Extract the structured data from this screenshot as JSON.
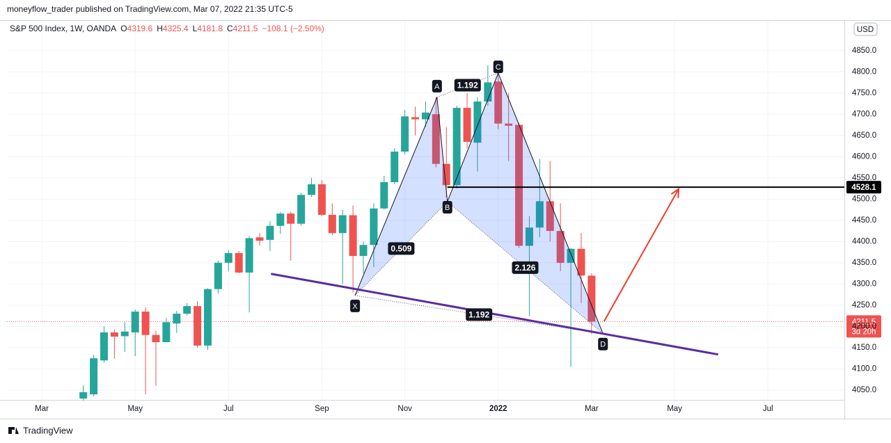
{
  "header": "moneyflow_trader published on TradingView.com, Mar 07, 2022 21:35 UTC-5",
  "footer": "TradingView",
  "chart_data": {
    "type": "candlestick",
    "title": "S&P 500 Index, 1W, OANDA",
    "legend_keys": [
      "O",
      "H",
      "L",
      "C"
    ],
    "change": "−108.1 (−2.50%)",
    "currency": "USD",
    "countdown": "3d 20h",
    "up_color": "#26a69a",
    "down_color": "#ef5350",
    "x": [
      4,
      5,
      6,
      7,
      8,
      9,
      10,
      11,
      12,
      13,
      14,
      15,
      16,
      17,
      18,
      19,
      20,
      21,
      22,
      23,
      24,
      25,
      26,
      27,
      28,
      29,
      30,
      31,
      32,
      33,
      34,
      35,
      36,
      37,
      38,
      39,
      40,
      41,
      42,
      43,
      44,
      45,
      46,
      47,
      48,
      49,
      50,
      51,
      52,
      53
    ],
    "open": [
      4030,
      4040,
      4120,
      4186,
      4177,
      4186,
      4235,
      4180,
      4163,
      4207,
      4230,
      4248,
      4155,
      4288,
      4350,
      4373,
      4327,
      4410,
      4404,
      4437,
      4466,
      4442,
      4510,
      4535,
      4463,
      4420,
      4462,
      4366,
      4392,
      4478,
      4540,
      4612,
      4693,
      4688,
      4700,
      4583,
      4533,
      4715,
      4633,
      4730,
      4777,
      4678,
      4675,
      4390,
      4433,
      4495,
      4425,
      4350,
      4383,
      4319.6
    ],
    "high": [
      4062,
      4133,
      4200,
      4193,
      4210,
      4240,
      4245,
      4190,
      4220,
      4237,
      4255,
      4260,
      4290,
      4355,
      4380,
      4378,
      4413,
      4420,
      4448,
      4470,
      4470,
      4515,
      4550,
      4545,
      4490,
      4475,
      4485,
      4400,
      4490,
      4555,
      4620,
      4710,
      4718,
      4730,
      4740,
      4670,
      4720,
      4750,
      4740,
      4815,
      4800,
      4750,
      4680,
      4460,
      4595,
      4590,
      4490,
      4385,
      4420,
      4325.4
    ],
    "low": [
      4025,
      4035,
      4115,
      4124,
      4140,
      4130,
      4040,
      4060,
      4163,
      4185,
      4225,
      4150,
      4145,
      4277,
      4330,
      4325,
      4233,
      4390,
      4378,
      4418,
      4355,
      4438,
      4505,
      4460,
      4415,
      4300,
      4280,
      4325,
      4340,
      4475,
      4535,
      4605,
      4650,
      4670,
      4575,
      4505,
      4525,
      4620,
      4565,
      4720,
      4665,
      4590,
      4385,
      4225,
      4410,
      4400,
      4330,
      4105,
      4255,
      4181.8
    ],
    "close": [
      4045,
      4125,
      4186,
      4176,
      4188,
      4235,
      4180,
      4163,
      4210,
      4230,
      4248,
      4155,
      4288,
      4350,
      4373,
      4327,
      4408,
      4402,
      4437,
      4466,
      4442,
      4510,
      4535,
      4463,
      4420,
      4462,
      4366,
      4392,
      4478,
      4540,
      4612,
      4695,
      4688,
      4704,
      4583,
      4533,
      4715,
      4635,
      4730,
      4775,
      4678,
      4673,
      4390,
      4433,
      4495,
      4425,
      4350,
      4383,
      4320,
      4211.5
    ],
    "xlim": [
      -3.36,
      77.37
    ],
    "ylim": [
      4027,
      4920
    ],
    "xticks": [
      {
        "value": 0,
        "label": "Mar"
      },
      {
        "value": 9,
        "label": "May"
      },
      {
        "value": 18,
        "label": "Jul"
      },
      {
        "value": 27,
        "label": "Sep"
      },
      {
        "value": 35,
        "label": "Nov"
      },
      {
        "value": 44,
        "label": "2022"
      },
      {
        "value": 53,
        "label": "Mar"
      },
      {
        "value": 61,
        "label": "May"
      },
      {
        "value": 70,
        "label": "Jul"
      }
    ],
    "yticks": [
      {
        "value": 4050,
        "label": "4050.0"
      },
      {
        "value": 4100,
        "label": "4100.0"
      },
      {
        "value": 4150,
        "label": "4150.0"
      },
      {
        "value": 4200,
        "label": "4200.0"
      },
      {
        "value": 4250,
        "label": "4250.0"
      },
      {
        "value": 4300,
        "label": "4300.0"
      },
      {
        "value": 4350,
        "label": "4350.0"
      },
      {
        "value": 4400,
        "label": "4400.0"
      },
      {
        "value": 4450,
        "label": "4450.0"
      },
      {
        "value": 4500,
        "label": "4500.0"
      },
      {
        "value": 4550,
        "label": "4550.0"
      },
      {
        "value": 4600,
        "label": "4600.0"
      },
      {
        "value": 4650,
        "label": "4650.0"
      },
      {
        "value": 4700,
        "label": "4700.0"
      },
      {
        "value": 4750,
        "label": "4750.0"
      },
      {
        "value": 4800,
        "label": "4800.0"
      },
      {
        "value": 4850,
        "label": "4850.0"
      }
    ],
    "grid": true,
    "pattern": [
      {
        "label": "X",
        "x": 30.2,
        "y": 4273
      },
      {
        "label": "A",
        "x": 38.1,
        "y": 4740
      },
      {
        "label": "B",
        "x": 39.1,
        "y": 4494
      },
      {
        "label": "C",
        "x": 44,
        "y": 4797
      },
      {
        "label": "D",
        "x": 54.1,
        "y": 4183
      }
    ],
    "ratios": [
      "1.192",
      "0.509",
      "2.126",
      "1.192"
    ],
    "hline": {
      "value": 4528.1,
      "x": 39.1,
      "color": "#000000"
    },
    "trendline": {
      "x": [
        22.1,
        65.2
      ],
      "y": [
        4324,
        4134
      ],
      "color": "#5b2c9f"
    },
    "arrow": {
      "x": [
        54.2,
        61.4
      ],
      "y": [
        4212,
        4524
      ],
      "color": "#f23a2a"
    }
  }
}
